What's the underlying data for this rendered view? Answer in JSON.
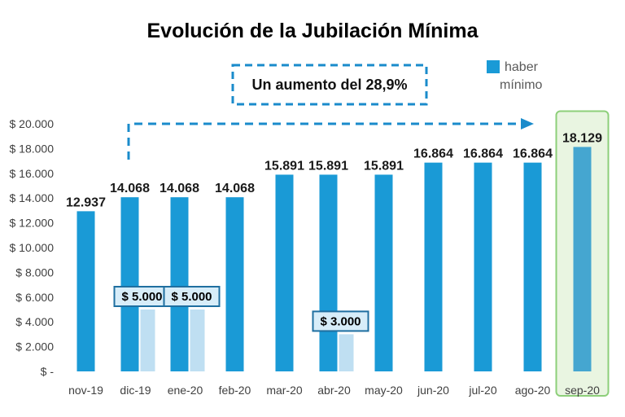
{
  "chart_data": {
    "type": "bar",
    "title": "Evolución de la Jubilación Mínima",
    "categories": [
      "nov-19",
      "dic-19",
      "ene-20",
      "feb-20",
      "mar-20",
      "abr-20",
      "may-20",
      "jun-20",
      "jul-20",
      "ago-20",
      "sep-20"
    ],
    "series": [
      {
        "name": "haber mínimo",
        "values": [
          12937,
          14068,
          14068,
          14068,
          15891,
          15891,
          15891,
          16864,
          16864,
          16864,
          18129
        ],
        "labels": [
          "12.937",
          "14.068",
          "14.068",
          "14.068",
          "15.891",
          "15.891",
          "15.891",
          "16.864",
          "16.864",
          "16.864",
          "18.129"
        ]
      }
    ],
    "bonuses": [
      {
        "category": "dic-19",
        "value": 5000,
        "label": "$ 5.000"
      },
      {
        "category": "ene-20",
        "value": 5000,
        "label": "$ 5.000"
      },
      {
        "category": "abr-20",
        "value": 3000,
        "label": "$ 3.000"
      }
    ],
    "ylim": [
      0,
      20000
    ],
    "yticks": [
      0,
      2000,
      4000,
      6000,
      8000,
      10000,
      12000,
      14000,
      16000,
      18000,
      20000
    ],
    "ytick_labels": [
      "$ -",
      "$ 2.000",
      "$ 4.000",
      "$ 6.000",
      "$ 8.000",
      "$ 10.000",
      "$ 12.000",
      "$ 14.000",
      "$ 16.000",
      "$ 18.000",
      "$ 20.000"
    ],
    "annotation": "Un aumento del 28,9%",
    "legend": {
      "label_line1": "haber",
      "label_line2": "mínimo",
      "position": "top-right"
    },
    "highlight_category": "sep-20",
    "grid": false,
    "colors": {
      "main": "#1a9ad6",
      "highlight": "#45a6d0",
      "bonus": "#bfdff2",
      "bonus_label_bg": "#d7edf9",
      "bonus_label_border": "#1f6fa0",
      "annotation": "#1a8bcb",
      "highlight_frame": "#8dcf7a",
      "highlight_fill": "#e9f5e1"
    }
  }
}
